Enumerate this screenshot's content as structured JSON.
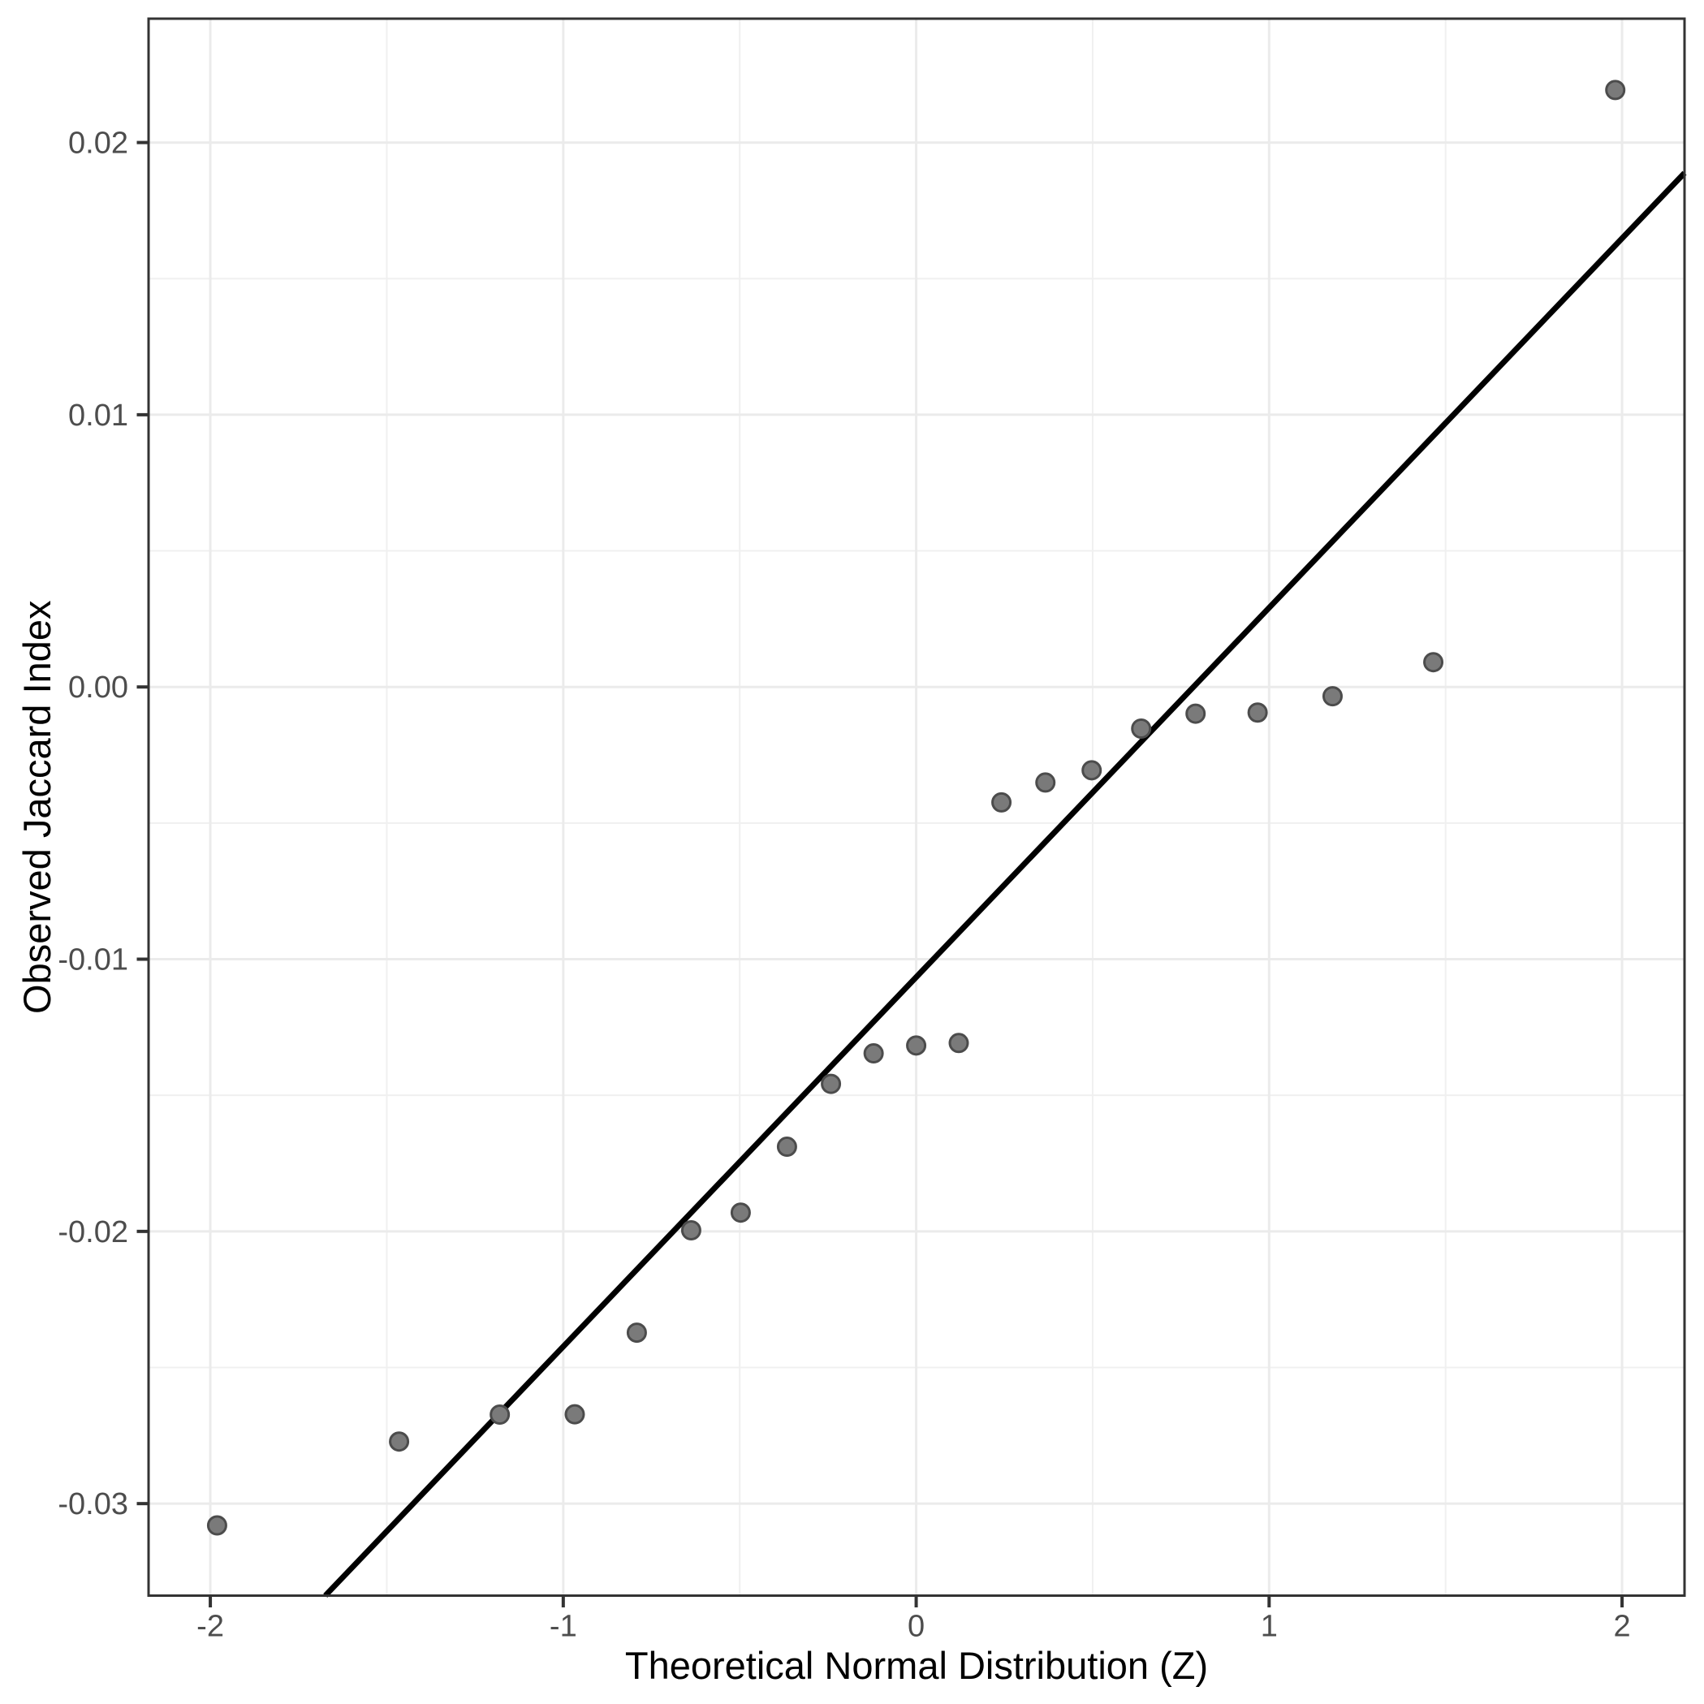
{
  "chart_data": {
    "type": "scatter",
    "title": "",
    "xlabel": "Theoretical Normal Distribution (Z)",
    "ylabel": "Observed Jaccard Index",
    "xlim": [
      -2.175,
      2.177
    ],
    "ylim": [
      -0.03338,
      0.02455
    ],
    "grid": true,
    "legend": "none",
    "x_tick_values": [
      -2,
      -1,
      0,
      1,
      2
    ],
    "x_tick_labels": [
      "-2",
      "-1",
      "0",
      "1",
      "2"
    ],
    "y_tick_values": [
      0.02,
      0.01,
      0,
      -0.01,
      -0.02,
      -0.03
    ],
    "y_tick_labels": [
      "0.02",
      "0.01",
      "0.00",
      "-0.01",
      "-0.02",
      "-0.03"
    ],
    "x_minor_grid_values": [
      -1.5,
      -0.5,
      0.5,
      1.5
    ],
    "y_minor_grid_values": [
      0.015,
      0.005,
      -0.005,
      -0.015,
      -0.025
    ],
    "points": [
      [
        -1.9808,
        -0.0308
      ],
      [
        -1.4652,
        -0.02772
      ],
      [
        -1.1798,
        -0.02673
      ],
      [
        -0.9674,
        -0.02672
      ],
      [
        -0.7916,
        -0.02372
      ],
      [
        -0.6375,
        -0.01996
      ],
      [
        -0.4972,
        -0.01931
      ],
      [
        -0.3661,
        -0.01689
      ],
      [
        -0.2415,
        -0.01458
      ],
      [
        -0.1206,
        -0.01346
      ],
      [
        0.0,
        -0.01317
      ],
      [
        0.1206,
        -0.01308
      ],
      [
        0.2415,
        -0.00424
      ],
      [
        0.3661,
        -0.00351
      ],
      [
        0.4972,
        -0.00306
      ],
      [
        0.6375,
        -0.00153
      ],
      [
        0.7916,
        -0.00098
      ],
      [
        0.9674,
        -0.00094
      ],
      [
        1.1798,
        -0.00034
      ],
      [
        1.4652,
        0.00091
      ],
      [
        1.9808,
        0.02193
      ]
    ],
    "reference_line": {
      "slope": 0.01357,
      "intercept": -0.01066,
      "description": "QQ line through first and third quartiles"
    },
    "colors": {
      "point_fill": "#7a7a7a",
      "point_stroke": "#4c4c4c",
      "reference_line": "#000000",
      "grid_major": "#ebebeb",
      "grid_minor": "#f0f0f0",
      "panel_border": "#333333",
      "tick_mark": "#333333",
      "tick_label": "#4d4d4d",
      "axis_title": "#000000",
      "background": "#ffffff"
    }
  }
}
